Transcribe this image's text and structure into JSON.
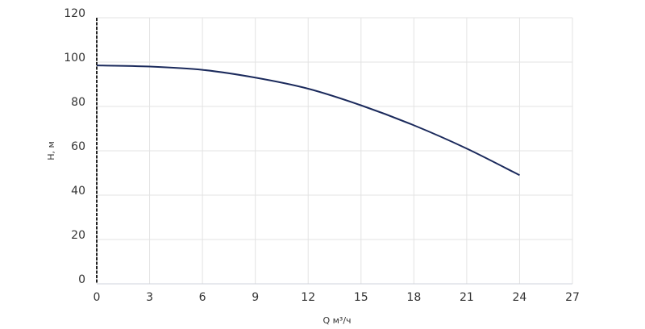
{
  "chart_data": {
    "type": "line",
    "x_label": "Q м³/ч",
    "y_label": "H, м",
    "x": [
      0,
      3,
      6,
      9,
      12,
      15,
      18,
      21,
      24
    ],
    "values": [
      98.5,
      98,
      96.5,
      93,
      88,
      80.5,
      71.5,
      61,
      49
    ],
    "color": "#1b2a5c",
    "xlim": [
      0,
      27
    ],
    "xticks": [
      0,
      3,
      6,
      9,
      12,
      15,
      18,
      21,
      24,
      27
    ],
    "ylim": [
      0,
      120
    ],
    "yticks": [
      0,
      20,
      40,
      60,
      80,
      100,
      120
    ],
    "grid": true
  }
}
